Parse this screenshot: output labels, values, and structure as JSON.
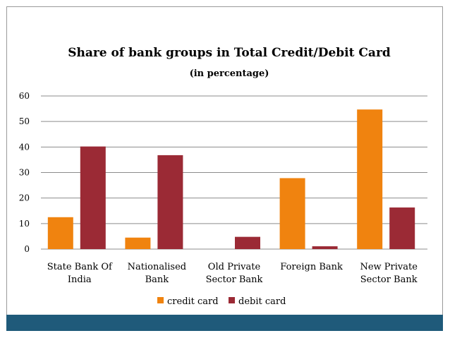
{
  "chart_data": {
    "type": "bar",
    "title": "Share of bank groups in Total Credit/Debit Card",
    "subtitle": "(in percentage)",
    "categories": [
      [
        "State Bank Of",
        "India"
      ],
      [
        "Nationalised",
        "Bank"
      ],
      [
        "Old Private",
        "Sector Bank"
      ],
      [
        "Foreign Bank"
      ],
      [
        "New Private",
        "Sector Bank"
      ]
    ],
    "series": [
      {
        "name": "credit card",
        "color": "#f0830f",
        "values": [
          12.5,
          4.5,
          0,
          27.8,
          54.7
        ]
      },
      {
        "name": "debit card",
        "color": "#9b2a35",
        "values": [
          40.2,
          36.8,
          4.8,
          1.1,
          16.3
        ]
      }
    ],
    "ylim": [
      0,
      60
    ],
    "yticks": [
      0,
      10,
      20,
      30,
      40,
      50,
      60
    ],
    "grid": true,
    "legend_position": "bottom"
  }
}
